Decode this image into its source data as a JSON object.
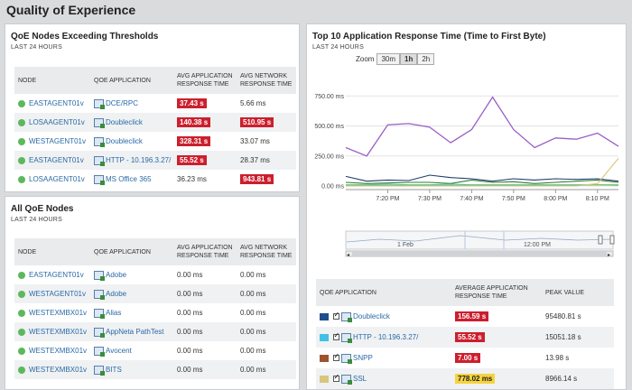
{
  "page": {
    "title": "Quality of Experience"
  },
  "thresholds": {
    "title": "QoE Nodes Exceeding Thresholds",
    "subtitle": "LAST 24 HOURS",
    "columns": [
      "NODE",
      "QOE APPLICATION",
      "AVG APPLICATION RESPONSE TIME",
      "AVG NETWORK RESPONSE TIME"
    ],
    "rows": [
      {
        "node": "EASTAGENT01v",
        "app": "DCE/RPC",
        "app_rt": "37.43 s",
        "app_bad": true,
        "net_rt": "5.66 ms",
        "net_bad": false
      },
      {
        "node": "LOSAAGENT01v",
        "app": "Doubleclick",
        "app_rt": "140.38 s",
        "app_bad": true,
        "net_rt": "510.95 s",
        "net_bad": true
      },
      {
        "node": "WESTAGENT01v",
        "app": "Doubleclick",
        "app_rt": "328.31 s",
        "app_bad": true,
        "net_rt": "33.07 ms",
        "net_bad": false
      },
      {
        "node": "EASTAGENT01v",
        "app": "HTTP - 10.196.3.27/",
        "app_rt": "55.52 s",
        "app_bad": true,
        "net_rt": "28.37 ms",
        "net_bad": false
      },
      {
        "node": "LOSAAGENT01v",
        "app": "MS Office 365",
        "app_rt": "36.23 ms",
        "app_bad": false,
        "net_rt": "943.81 s",
        "net_bad": true
      }
    ]
  },
  "allnodes": {
    "title": "All QoE Nodes",
    "subtitle": "LAST 24 HOURS",
    "columns": [
      "NODE",
      "QOE APPLICATION",
      "AVG APPLICATION RESPONSE TIME",
      "AVG NETWORK RESPONSE TIME"
    ],
    "rows": [
      {
        "node": "EASTAGENT01v",
        "app": "Adobe",
        "app_rt": "0.00 ms",
        "net_rt": "0.00 ms"
      },
      {
        "node": "WESTAGENT01v",
        "app": "Adobe",
        "app_rt": "0.00 ms",
        "net_rt": "0.00 ms"
      },
      {
        "node": "WESTEXMBX01v",
        "app": "Alias",
        "app_rt": "0.00 ms",
        "net_rt": "0.00 ms"
      },
      {
        "node": "WESTEXMBX01v",
        "app": "AppNeta PathTest",
        "app_rt": "0.00 ms",
        "net_rt": "0.00 ms"
      },
      {
        "node": "WESTEXMBX01v",
        "app": "Avocent",
        "app_rt": "0.00 ms",
        "net_rt": "0.00 ms"
      },
      {
        "node": "WESTEXMBX01v",
        "app": "BITS",
        "app_rt": "0.00 ms",
        "net_rt": "0.00 ms"
      }
    ]
  },
  "top10": {
    "title": "Top 10 Application Response Time (Time to First Byte)",
    "subtitle": "LAST 24 HOURS",
    "zoom_label": "Zoom",
    "zoom_options": [
      "30m",
      "1h",
      "2h"
    ],
    "zoom_active": "1h",
    "navigator_labels": [
      "1 Feb",
      "12:00 PM"
    ],
    "legend_columns": [
      "QOE APPLICATION",
      "AVERAGE APPLICATION RESPONSE TIME",
      "PEAK VALUE"
    ],
    "legend_rows": [
      {
        "color": "#1f4e8c",
        "app": "Doubleclick",
        "avg": "156.59 s",
        "status": "bad",
        "peak": "95480.81 s"
      },
      {
        "color": "#3fc1e6",
        "app": "HTTP - 10.196.3.27/",
        "avg": "55.52 s",
        "status": "bad",
        "peak": "15051.18 s"
      },
      {
        "color": "#a0522d",
        "app": "SNPP",
        "avg": "7.00 s",
        "status": "bad",
        "peak": "13.98 s"
      },
      {
        "color": "#d9c67a",
        "app": "SSL",
        "avg": "778.02 ms",
        "status": "warn",
        "peak": "8966.14 s"
      }
    ]
  },
  "chart_data": {
    "type": "line",
    "ylabel": "",
    "ylim": [
      0,
      850
    ],
    "yticks": [
      0,
      250,
      500,
      750
    ],
    "ytick_labels": [
      "0.00 ms",
      "250.00 ms",
      "500.00 ms",
      "750.00 ms"
    ],
    "xticks": [
      "7:20 PM",
      "7:30 PM",
      "7:40 PM",
      "7:50 PM",
      "8:00 PM",
      "8:10 PM"
    ],
    "x": [
      "7:13",
      "7:15",
      "7:20",
      "7:25",
      "7:30",
      "7:35",
      "7:40",
      "7:45",
      "7:50",
      "7:55",
      "8:00",
      "8:05",
      "8:10",
      "8:13"
    ],
    "grid": true,
    "series": [
      {
        "color": "#9a5fc7",
        "values": [
          320,
          250,
          510,
          520,
          490,
          360,
          470,
          740,
          470,
          320,
          400,
          390,
          440,
          330
        ]
      },
      {
        "color": "#1f3c66",
        "values": [
          80,
          40,
          50,
          45,
          90,
          70,
          60,
          40,
          60,
          50,
          60,
          55,
          60,
          40
        ]
      },
      {
        "color": "#2e7d32",
        "values": [
          30,
          20,
          25,
          30,
          30,
          20,
          50,
          30,
          35,
          20,
          30,
          40,
          50,
          30
        ]
      },
      {
        "color": "#3fc1e6",
        "values": [
          10,
          10,
          15,
          10,
          10,
          15,
          10,
          10,
          10,
          10,
          10,
          10,
          10,
          10
        ]
      },
      {
        "color": "#8bbf3f",
        "values": [
          5,
          5,
          5,
          5,
          5,
          5,
          5,
          5,
          5,
          5,
          5,
          5,
          10,
          5
        ]
      },
      {
        "color": "#d9c67a",
        "values": [
          0,
          0,
          0,
          0,
          0,
          0,
          0,
          0,
          0,
          0,
          0,
          0,
          20,
          230
        ]
      }
    ]
  }
}
